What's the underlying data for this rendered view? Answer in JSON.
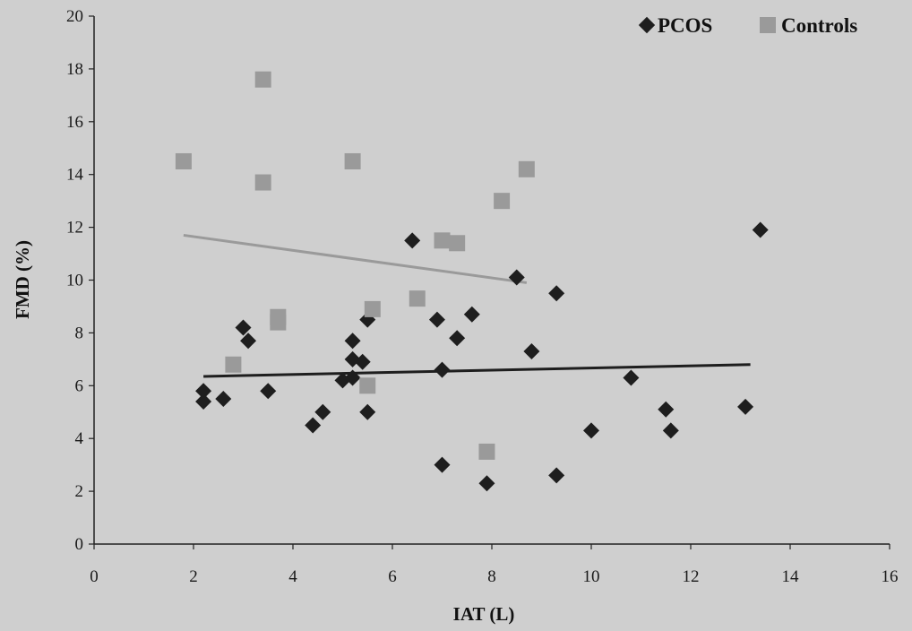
{
  "chart_data": {
    "type": "scatter",
    "xlabel": "IAT (L)",
    "ylabel": "FMD (%)",
    "xlim": [
      0,
      16
    ],
    "ylim": [
      0,
      20
    ],
    "xticks": [
      0,
      2,
      4,
      6,
      8,
      10,
      12,
      14,
      16
    ],
    "yticks": [
      0,
      2,
      4,
      6,
      8,
      10,
      12,
      14,
      16,
      18,
      20
    ],
    "grid": false,
    "legend_position": "top-right",
    "colors": {
      "PCOS": "#1e1e1e",
      "Controls": "#9a9a9a"
    },
    "series": [
      {
        "name": "PCOS",
        "marker": "diamond",
        "points": [
          [
            2.2,
            5.8
          ],
          [
            2.2,
            5.4
          ],
          [
            2.6,
            5.5
          ],
          [
            3.0,
            8.2
          ],
          [
            3.1,
            7.7
          ],
          [
            3.5,
            5.8
          ],
          [
            4.4,
            4.5
          ],
          [
            4.6,
            5.0
          ],
          [
            5.0,
            6.2
          ],
          [
            5.2,
            6.3
          ],
          [
            5.2,
            7.0
          ],
          [
            5.2,
            7.7
          ],
          [
            5.4,
            6.9
          ],
          [
            5.5,
            8.5
          ],
          [
            5.5,
            5.0
          ],
          [
            6.4,
            11.5
          ],
          [
            6.9,
            8.5
          ],
          [
            7.0,
            3.0
          ],
          [
            7.0,
            6.6
          ],
          [
            7.3,
            7.8
          ],
          [
            7.6,
            8.7
          ],
          [
            7.9,
            2.3
          ],
          [
            8.5,
            10.1
          ],
          [
            8.8,
            7.3
          ],
          [
            9.3,
            9.5
          ],
          [
            9.3,
            2.6
          ],
          [
            10.0,
            4.3
          ],
          [
            10.8,
            6.3
          ],
          [
            11.5,
            5.1
          ],
          [
            11.6,
            4.3
          ],
          [
            13.1,
            5.2
          ],
          [
            13.4,
            11.9
          ]
        ],
        "trendline": [
          [
            2.2,
            6.35
          ],
          [
            13.2,
            6.8
          ]
        ]
      },
      {
        "name": "Controls",
        "marker": "square",
        "points": [
          [
            1.8,
            14.5
          ],
          [
            2.8,
            6.8
          ],
          [
            3.4,
            17.6
          ],
          [
            3.4,
            13.7
          ],
          [
            3.7,
            8.6
          ],
          [
            3.7,
            8.4
          ],
          [
            5.2,
            14.5
          ],
          [
            5.5,
            6.0
          ],
          [
            5.6,
            8.9
          ],
          [
            6.5,
            9.3
          ],
          [
            7.0,
            11.5
          ],
          [
            7.3,
            11.4
          ],
          [
            7.9,
            3.5
          ],
          [
            8.2,
            13.0
          ],
          [
            8.7,
            14.2
          ]
        ],
        "trendline": [
          [
            1.8,
            11.7
          ],
          [
            8.7,
            9.9
          ]
        ]
      }
    ]
  }
}
